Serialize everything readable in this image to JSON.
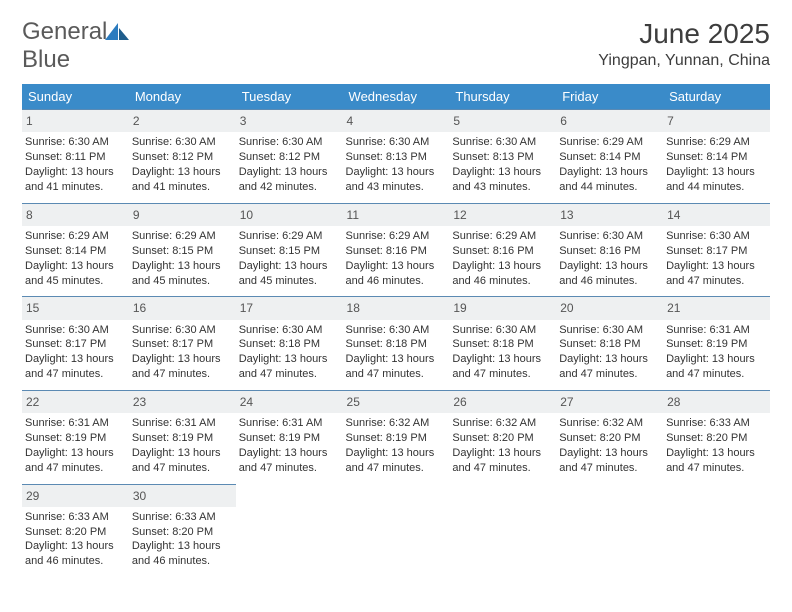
{
  "brand": {
    "text1": "General",
    "text2": "Blue",
    "text1_color": "#5a5a5a",
    "text2_color": "#2b7bbf"
  },
  "header": {
    "title": "June 2025",
    "location": "Yingpan, Yunnan, China"
  },
  "calendar": {
    "header_bg": "#3a8bc9",
    "header_color": "#ffffff",
    "num_bg": "#eef0f1",
    "border_color": "#5b8ab3",
    "day_names": [
      "Sunday",
      "Monday",
      "Tuesday",
      "Wednesday",
      "Thursday",
      "Friday",
      "Saturday"
    ],
    "weeks": [
      [
        {
          "n": "1",
          "sr": "6:30 AM",
          "ss": "8:11 PM",
          "dl": "13 hours and 41 minutes."
        },
        {
          "n": "2",
          "sr": "6:30 AM",
          "ss": "8:12 PM",
          "dl": "13 hours and 41 minutes."
        },
        {
          "n": "3",
          "sr": "6:30 AM",
          "ss": "8:12 PM",
          "dl": "13 hours and 42 minutes."
        },
        {
          "n": "4",
          "sr": "6:30 AM",
          "ss": "8:13 PM",
          "dl": "13 hours and 43 minutes."
        },
        {
          "n": "5",
          "sr": "6:30 AM",
          "ss": "8:13 PM",
          "dl": "13 hours and 43 minutes."
        },
        {
          "n": "6",
          "sr": "6:29 AM",
          "ss": "8:14 PM",
          "dl": "13 hours and 44 minutes."
        },
        {
          "n": "7",
          "sr": "6:29 AM",
          "ss": "8:14 PM",
          "dl": "13 hours and 44 minutes."
        }
      ],
      [
        {
          "n": "8",
          "sr": "6:29 AM",
          "ss": "8:14 PM",
          "dl": "13 hours and 45 minutes."
        },
        {
          "n": "9",
          "sr": "6:29 AM",
          "ss": "8:15 PM",
          "dl": "13 hours and 45 minutes."
        },
        {
          "n": "10",
          "sr": "6:29 AM",
          "ss": "8:15 PM",
          "dl": "13 hours and 45 minutes."
        },
        {
          "n": "11",
          "sr": "6:29 AM",
          "ss": "8:16 PM",
          "dl": "13 hours and 46 minutes."
        },
        {
          "n": "12",
          "sr": "6:29 AM",
          "ss": "8:16 PM",
          "dl": "13 hours and 46 minutes."
        },
        {
          "n": "13",
          "sr": "6:30 AM",
          "ss": "8:16 PM",
          "dl": "13 hours and 46 minutes."
        },
        {
          "n": "14",
          "sr": "6:30 AM",
          "ss": "8:17 PM",
          "dl": "13 hours and 47 minutes."
        }
      ],
      [
        {
          "n": "15",
          "sr": "6:30 AM",
          "ss": "8:17 PM",
          "dl": "13 hours and 47 minutes."
        },
        {
          "n": "16",
          "sr": "6:30 AM",
          "ss": "8:17 PM",
          "dl": "13 hours and 47 minutes."
        },
        {
          "n": "17",
          "sr": "6:30 AM",
          "ss": "8:18 PM",
          "dl": "13 hours and 47 minutes."
        },
        {
          "n": "18",
          "sr": "6:30 AM",
          "ss": "8:18 PM",
          "dl": "13 hours and 47 minutes."
        },
        {
          "n": "19",
          "sr": "6:30 AM",
          "ss": "8:18 PM",
          "dl": "13 hours and 47 minutes."
        },
        {
          "n": "20",
          "sr": "6:30 AM",
          "ss": "8:18 PM",
          "dl": "13 hours and 47 minutes."
        },
        {
          "n": "21",
          "sr": "6:31 AM",
          "ss": "8:19 PM",
          "dl": "13 hours and 47 minutes."
        }
      ],
      [
        {
          "n": "22",
          "sr": "6:31 AM",
          "ss": "8:19 PM",
          "dl": "13 hours and 47 minutes."
        },
        {
          "n": "23",
          "sr": "6:31 AM",
          "ss": "8:19 PM",
          "dl": "13 hours and 47 minutes."
        },
        {
          "n": "24",
          "sr": "6:31 AM",
          "ss": "8:19 PM",
          "dl": "13 hours and 47 minutes."
        },
        {
          "n": "25",
          "sr": "6:32 AM",
          "ss": "8:19 PM",
          "dl": "13 hours and 47 minutes."
        },
        {
          "n": "26",
          "sr": "6:32 AM",
          "ss": "8:20 PM",
          "dl": "13 hours and 47 minutes."
        },
        {
          "n": "27",
          "sr": "6:32 AM",
          "ss": "8:20 PM",
          "dl": "13 hours and 47 minutes."
        },
        {
          "n": "28",
          "sr": "6:33 AM",
          "ss": "8:20 PM",
          "dl": "13 hours and 47 minutes."
        }
      ],
      [
        {
          "n": "29",
          "sr": "6:33 AM",
          "ss": "8:20 PM",
          "dl": "13 hours and 46 minutes."
        },
        {
          "n": "30",
          "sr": "6:33 AM",
          "ss": "8:20 PM",
          "dl": "13 hours and 46 minutes."
        },
        null,
        null,
        null,
        null,
        null
      ]
    ]
  },
  "labels": {
    "sunrise": "Sunrise:",
    "sunset": "Sunset:",
    "daylight": "Daylight:"
  }
}
